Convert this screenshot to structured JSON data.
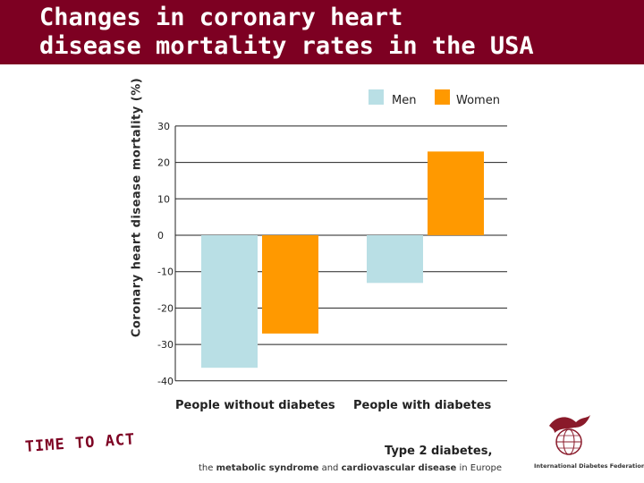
{
  "title_line1": "Changes in coronary heart",
  "title_line2": "disease mortality rates in the USA",
  "colors": {
    "header": "#7d0022",
    "men": "#b9dfe5",
    "women": "#ff9900"
  },
  "footer": {
    "slogan": "TIME TO ACT",
    "title": "Type 2 diabetes,",
    "sub_prefix": "the",
    "sub_bold1": "metabolic syndrome",
    "sub_mid": "and",
    "sub_bold2": "cardiovascular disease",
    "sub_suffix": "in Europe",
    "logo_text": "International Diabetes Federation"
  },
  "chart_data": {
    "type": "bar",
    "ylabel": "Coronary heart disease mortality (%)",
    "xlabel": "",
    "ylim": [
      -40,
      30
    ],
    "yticks": [
      "30",
      "20",
      "10",
      "0",
      "-10",
      "-20",
      "-30",
      "-40"
    ],
    "categories": [
      "People without diabetes",
      "People with diabetes"
    ],
    "series": [
      {
        "name": "Men",
        "values": [
          -36.4,
          -13.1
        ]
      },
      {
        "name": "Women",
        "values": [
          -27.0,
          23.0
        ]
      }
    ],
    "legend_position": "top-right",
    "grid": true
  }
}
